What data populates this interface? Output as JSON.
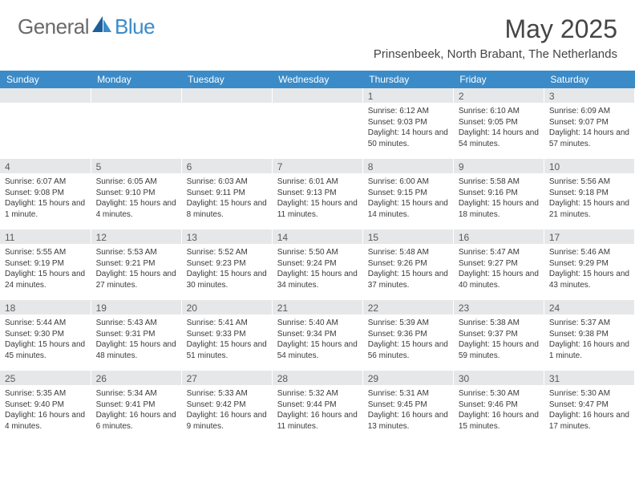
{
  "logo": {
    "text1": "General",
    "text2": "Blue",
    "brand_color": "#3b8bc8",
    "text_color": "#6a6a6a"
  },
  "title": "May 2025",
  "location": "Prinsenbeek, North Brabant, The Netherlands",
  "colors": {
    "header_bg": "#3b8bc8",
    "header_fg": "#ffffff",
    "daynum_bg": "#e6e7e8",
    "body_text": "#3a3a3a",
    "title_text": "#454545"
  },
  "weekdays": [
    "Sunday",
    "Monday",
    "Tuesday",
    "Wednesday",
    "Thursday",
    "Friday",
    "Saturday"
  ],
  "weeks": [
    [
      {
        "n": "",
        "sr": "",
        "ss": "",
        "dl": ""
      },
      {
        "n": "",
        "sr": "",
        "ss": "",
        "dl": ""
      },
      {
        "n": "",
        "sr": "",
        "ss": "",
        "dl": ""
      },
      {
        "n": "",
        "sr": "",
        "ss": "",
        "dl": ""
      },
      {
        "n": "1",
        "sr": "Sunrise: 6:12 AM",
        "ss": "Sunset: 9:03 PM",
        "dl": "Daylight: 14 hours and 50 minutes."
      },
      {
        "n": "2",
        "sr": "Sunrise: 6:10 AM",
        "ss": "Sunset: 9:05 PM",
        "dl": "Daylight: 14 hours and 54 minutes."
      },
      {
        "n": "3",
        "sr": "Sunrise: 6:09 AM",
        "ss": "Sunset: 9:07 PM",
        "dl": "Daylight: 14 hours and 57 minutes."
      }
    ],
    [
      {
        "n": "4",
        "sr": "Sunrise: 6:07 AM",
        "ss": "Sunset: 9:08 PM",
        "dl": "Daylight: 15 hours and 1 minute."
      },
      {
        "n": "5",
        "sr": "Sunrise: 6:05 AM",
        "ss": "Sunset: 9:10 PM",
        "dl": "Daylight: 15 hours and 4 minutes."
      },
      {
        "n": "6",
        "sr": "Sunrise: 6:03 AM",
        "ss": "Sunset: 9:11 PM",
        "dl": "Daylight: 15 hours and 8 minutes."
      },
      {
        "n": "7",
        "sr": "Sunrise: 6:01 AM",
        "ss": "Sunset: 9:13 PM",
        "dl": "Daylight: 15 hours and 11 minutes."
      },
      {
        "n": "8",
        "sr": "Sunrise: 6:00 AM",
        "ss": "Sunset: 9:15 PM",
        "dl": "Daylight: 15 hours and 14 minutes."
      },
      {
        "n": "9",
        "sr": "Sunrise: 5:58 AM",
        "ss": "Sunset: 9:16 PM",
        "dl": "Daylight: 15 hours and 18 minutes."
      },
      {
        "n": "10",
        "sr": "Sunrise: 5:56 AM",
        "ss": "Sunset: 9:18 PM",
        "dl": "Daylight: 15 hours and 21 minutes."
      }
    ],
    [
      {
        "n": "11",
        "sr": "Sunrise: 5:55 AM",
        "ss": "Sunset: 9:19 PM",
        "dl": "Daylight: 15 hours and 24 minutes."
      },
      {
        "n": "12",
        "sr": "Sunrise: 5:53 AM",
        "ss": "Sunset: 9:21 PM",
        "dl": "Daylight: 15 hours and 27 minutes."
      },
      {
        "n": "13",
        "sr": "Sunrise: 5:52 AM",
        "ss": "Sunset: 9:23 PM",
        "dl": "Daylight: 15 hours and 30 minutes."
      },
      {
        "n": "14",
        "sr": "Sunrise: 5:50 AM",
        "ss": "Sunset: 9:24 PM",
        "dl": "Daylight: 15 hours and 34 minutes."
      },
      {
        "n": "15",
        "sr": "Sunrise: 5:48 AM",
        "ss": "Sunset: 9:26 PM",
        "dl": "Daylight: 15 hours and 37 minutes."
      },
      {
        "n": "16",
        "sr": "Sunrise: 5:47 AM",
        "ss": "Sunset: 9:27 PM",
        "dl": "Daylight: 15 hours and 40 minutes."
      },
      {
        "n": "17",
        "sr": "Sunrise: 5:46 AM",
        "ss": "Sunset: 9:29 PM",
        "dl": "Daylight: 15 hours and 43 minutes."
      }
    ],
    [
      {
        "n": "18",
        "sr": "Sunrise: 5:44 AM",
        "ss": "Sunset: 9:30 PM",
        "dl": "Daylight: 15 hours and 45 minutes."
      },
      {
        "n": "19",
        "sr": "Sunrise: 5:43 AM",
        "ss": "Sunset: 9:31 PM",
        "dl": "Daylight: 15 hours and 48 minutes."
      },
      {
        "n": "20",
        "sr": "Sunrise: 5:41 AM",
        "ss": "Sunset: 9:33 PM",
        "dl": "Daylight: 15 hours and 51 minutes."
      },
      {
        "n": "21",
        "sr": "Sunrise: 5:40 AM",
        "ss": "Sunset: 9:34 PM",
        "dl": "Daylight: 15 hours and 54 minutes."
      },
      {
        "n": "22",
        "sr": "Sunrise: 5:39 AM",
        "ss": "Sunset: 9:36 PM",
        "dl": "Daylight: 15 hours and 56 minutes."
      },
      {
        "n": "23",
        "sr": "Sunrise: 5:38 AM",
        "ss": "Sunset: 9:37 PM",
        "dl": "Daylight: 15 hours and 59 minutes."
      },
      {
        "n": "24",
        "sr": "Sunrise: 5:37 AM",
        "ss": "Sunset: 9:38 PM",
        "dl": "Daylight: 16 hours and 1 minute."
      }
    ],
    [
      {
        "n": "25",
        "sr": "Sunrise: 5:35 AM",
        "ss": "Sunset: 9:40 PM",
        "dl": "Daylight: 16 hours and 4 minutes."
      },
      {
        "n": "26",
        "sr": "Sunrise: 5:34 AM",
        "ss": "Sunset: 9:41 PM",
        "dl": "Daylight: 16 hours and 6 minutes."
      },
      {
        "n": "27",
        "sr": "Sunrise: 5:33 AM",
        "ss": "Sunset: 9:42 PM",
        "dl": "Daylight: 16 hours and 9 minutes."
      },
      {
        "n": "28",
        "sr": "Sunrise: 5:32 AM",
        "ss": "Sunset: 9:44 PM",
        "dl": "Daylight: 16 hours and 11 minutes."
      },
      {
        "n": "29",
        "sr": "Sunrise: 5:31 AM",
        "ss": "Sunset: 9:45 PM",
        "dl": "Daylight: 16 hours and 13 minutes."
      },
      {
        "n": "30",
        "sr": "Sunrise: 5:30 AM",
        "ss": "Sunset: 9:46 PM",
        "dl": "Daylight: 16 hours and 15 minutes."
      },
      {
        "n": "31",
        "sr": "Sunrise: 5:30 AM",
        "ss": "Sunset: 9:47 PM",
        "dl": "Daylight: 16 hours and 17 minutes."
      }
    ]
  ]
}
